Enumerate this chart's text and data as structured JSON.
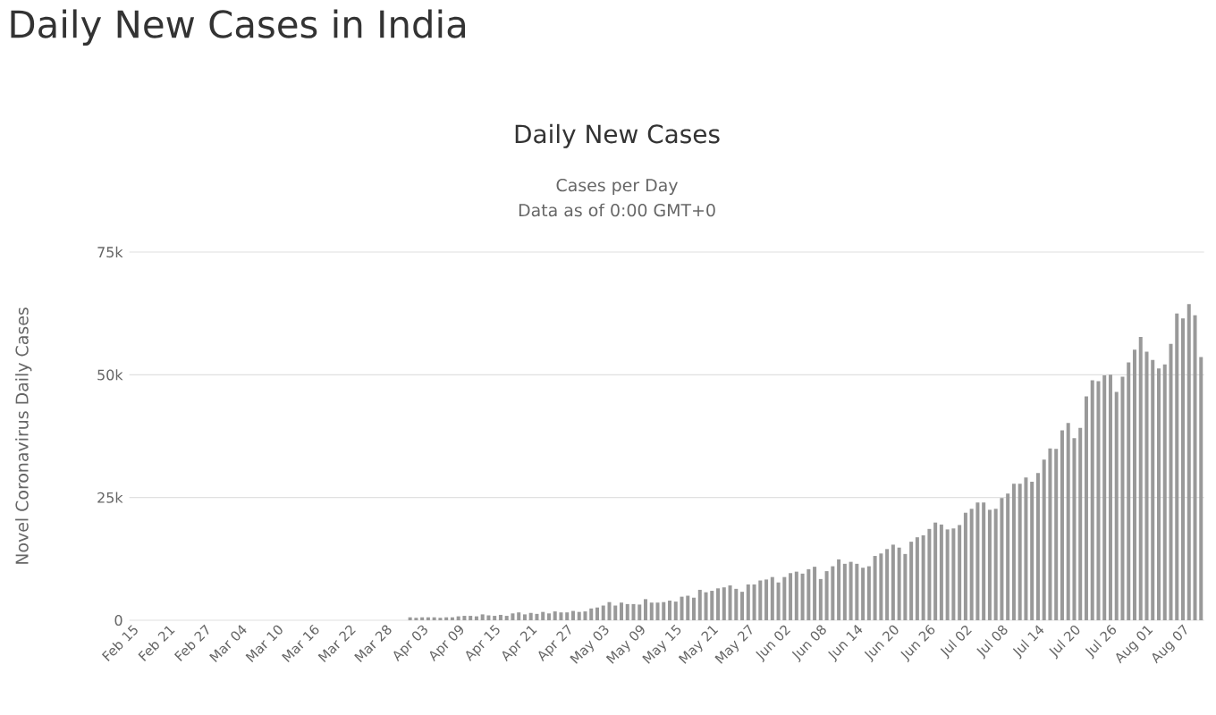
{
  "chart_data": {
    "type": "bar",
    "title": "Daily New Cases",
    "subtitle": "Cases per Day",
    "annotations": [
      "Daily New Cases in India",
      "Data as of 0:00 GMT+0"
    ],
    "ylabel": "Novel Coronavirus Daily Cases",
    "categories": [
      "Feb 15",
      null,
      null,
      null,
      null,
      null,
      "Feb 21",
      null,
      null,
      null,
      null,
      null,
      "Feb 27",
      null,
      null,
      null,
      null,
      null,
      "Mar 04",
      null,
      null,
      null,
      null,
      null,
      "Mar 10",
      null,
      null,
      null,
      null,
      null,
      "Mar 16",
      null,
      null,
      null,
      null,
      null,
      "Mar 22",
      null,
      null,
      null,
      null,
      null,
      "Mar 28",
      null,
      null,
      null,
      null,
      null,
      "Apr 03",
      null,
      null,
      null,
      null,
      null,
      "Apr 09",
      null,
      null,
      null,
      null,
      null,
      "Apr 15",
      null,
      null,
      null,
      null,
      null,
      "Apr 21",
      null,
      null,
      null,
      null,
      null,
      "Apr 27",
      null,
      null,
      null,
      null,
      null,
      "May 03",
      null,
      null,
      null,
      null,
      null,
      "May 09",
      null,
      null,
      null,
      null,
      null,
      "May 15",
      null,
      null,
      null,
      null,
      null,
      "May 21",
      null,
      null,
      null,
      null,
      null,
      "May 27",
      null,
      null,
      null,
      null,
      null,
      "Jun 02",
      null,
      null,
      null,
      null,
      null,
      "Jun 08",
      null,
      null,
      null,
      null,
      null,
      "Jun 14",
      null,
      null,
      null,
      null,
      null,
      "Jun 20",
      null,
      null,
      null,
      null,
      null,
      "Jun 26",
      null,
      null,
      null,
      null,
      null,
      "Jul 02",
      null,
      null,
      null,
      null,
      null,
      "Jul 08",
      null,
      null,
      null,
      null,
      null,
      "Jul 14",
      null,
      null,
      null,
      null,
      null,
      "Jul 20",
      null,
      null,
      null,
      null,
      null,
      "Jul 26",
      null,
      null,
      null,
      null,
      null,
      "Aug 01",
      null,
      null,
      null,
      null,
      null,
      "Aug 07",
      null,
      null,
      null
    ],
    "values": [
      0,
      0,
      0,
      0,
      0,
      0,
      0,
      0,
      0,
      0,
      0,
      0,
      0,
      0,
      0,
      0,
      0,
      0,
      0,
      0,
      0,
      0,
      0,
      0,
      0,
      0,
      0,
      0,
      0,
      0,
      0,
      0,
      0,
      0,
      0,
      0,
      0,
      0,
      0,
      0,
      0,
      0,
      0,
      0,
      0,
      0,
      600,
      500,
      600,
      600,
      600,
      500,
      600,
      600,
      800,
      900,
      900,
      800,
      1200,
      1000,
      900,
      1100,
      900,
      1400,
      1600,
      1200,
      1500,
      1300,
      1700,
      1400,
      1800,
      1600,
      1600,
      1900,
      1700,
      1800,
      2400,
      2600,
      3000,
      3700,
      3000,
      3600,
      3300,
      3300,
      3200,
      4300,
      3600,
      3600,
      3700,
      4000,
      3800,
      4800,
      5000,
      4600,
      6200,
      5700,
      6000,
      6500,
      6700,
      7100,
      6400,
      5800,
      7300,
      7300,
      8100,
      8300,
      8800,
      7700,
      8800,
      9600,
      9900,
      9500,
      10400,
      10900,
      8400,
      10000,
      11000,
      12400,
      11500,
      11900,
      11500,
      10700,
      11000,
      13100,
      13600,
      14500,
      15400,
      14800,
      13500,
      16000,
      16900,
      17300,
      18600,
      19900,
      19500,
      18500,
      18700,
      19400,
      21900,
      22700,
      24000,
      24000,
      22500,
      22700,
      24900,
      25800,
      27800,
      27800,
      29100,
      28200,
      30000,
      32700,
      35000,
      34900,
      38700,
      40200,
      37100,
      39200,
      45600,
      48900,
      48700,
      49900,
      50000,
      46500,
      49600,
      52500,
      55100,
      57700,
      54700,
      53000,
      51300,
      52100,
      56300,
      62500,
      61500,
      64400,
      62100,
      53600
    ],
    "color": "#999999",
    "ylim": [
      0,
      75000
    ],
    "yticks": [
      0,
      {
        "value": 25000,
        "label": "25k"
      },
      {
        "value": 50000,
        "label": "50k"
      },
      {
        "value": 75000,
        "label": "75k"
      }
    ],
    "grid": "y"
  }
}
